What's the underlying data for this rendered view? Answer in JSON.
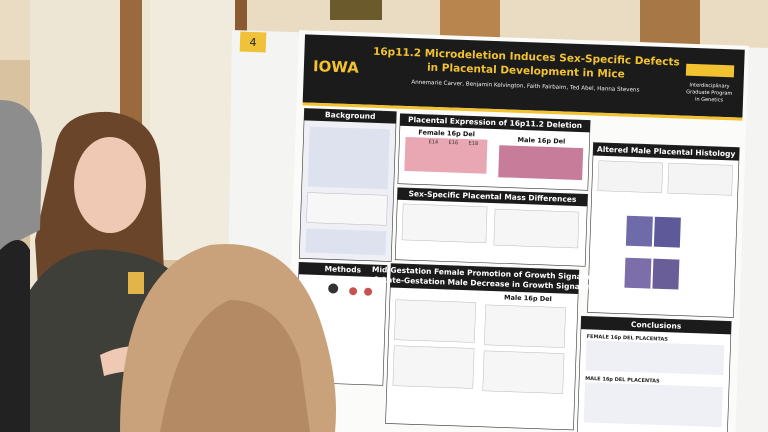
{
  "poster": {
    "number": "4",
    "logo": "IOWA",
    "title_lines": [
      "16p11.2 Microdeletion Induces Sex-Specific Defects",
      "in Placental Development in Mice"
    ],
    "authors": "Annemarie Carver, Benjamin Kelvington, Faith Fairbairn, Ted Abel, Hanna Stevens",
    "program_logo": [
      "Interdisciplinary",
      "Graduate Program",
      "in Genetics"
    ],
    "sections": {
      "background": "Background",
      "expression": "Placental Expression of 16p11.2 Deletion",
      "female": "Female 16p Del",
      "male": "Male 16p Del",
      "histology": "Altered Male Placental Histology",
      "mass": "Sex-Specific Placental Mass Differences",
      "signaling": [
        "Mid-Gestation Female Promotion of Growth Signaling",
        "& Late-Gestation Male Decrease in Growth Signaling"
      ],
      "methods": "Methods",
      "conclusions": "Conclusions",
      "signaling_male": "Male 16p Del",
      "conclusion_female": "FEMALE 16p DEL PLACENTAS",
      "conclusion_male": "MALE 16p DEL PLACENTAS"
    },
    "stages": [
      "E14",
      "E16",
      "E18"
    ]
  }
}
